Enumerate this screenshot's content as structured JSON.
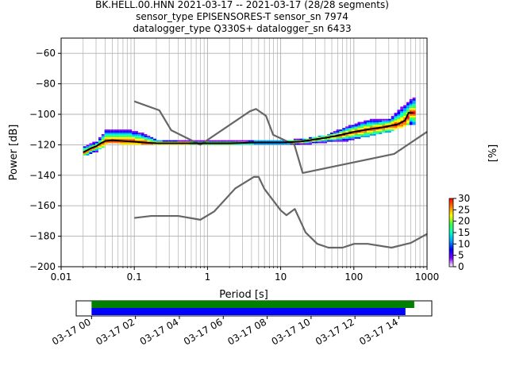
{
  "title_lines": [
    "BK.HELL.00.HNN   2021-03-17 -- 2021-03-17  (28/28 segments)",
    "sensor_type EPISENSORES-T sensor_sn 7974",
    "datalogger_type Q330S+ datalogger_sn 6433"
  ],
  "colorbar": {
    "label": "[%]",
    "ticks": [
      "0",
      "5",
      "10",
      "15",
      "20",
      "25",
      "30"
    ],
    "range": [
      0,
      30
    ],
    "colors": [
      "#ffffff",
      "#8000ff",
      "#0000ff",
      "#00a0ff",
      "#00ffcc",
      "#40ff40",
      "#ffff00",
      "#ff8000",
      "#ff0000"
    ]
  },
  "chart_data": {
    "type": "line",
    "xlabel": "Period [s]",
    "ylabel": "Power [dB]",
    "xscale": "log",
    "xlim": [
      0.01,
      1000
    ],
    "ylim": [
      -200,
      -50
    ],
    "x_ticks": [
      "0.01",
      "0.1",
      "1",
      "10",
      "100",
      "1000"
    ],
    "y_ticks": [
      "−200",
      "−180",
      "−160",
      "−140",
      "−120",
      "−100",
      "−80",
      "−60"
    ],
    "grid": true,
    "series": [
      {
        "role": "high-noise-model",
        "color": "#666666",
        "points": [
          [
            0.1,
            -91.5
          ],
          [
            0.22,
            -97.4
          ],
          [
            0.32,
            -110.5
          ],
          [
            0.8,
            -120.0
          ],
          [
            3.8,
            -98.0
          ],
          [
            4.6,
            -96.5
          ],
          [
            6.3,
            -101.0
          ],
          [
            7.9,
            -113.5
          ],
          [
            15.4,
            -120.0
          ],
          [
            20.0,
            -138.5
          ],
          [
            354.8,
            -126.0
          ],
          [
            1000,
            -111.5
          ]
        ]
      },
      {
        "role": "low-noise-model",
        "color": "#666666",
        "points": [
          [
            0.1,
            -168.0
          ],
          [
            0.17,
            -166.7
          ],
          [
            0.4,
            -166.7
          ],
          [
            0.8,
            -169.2
          ],
          [
            1.24,
            -163.7
          ],
          [
            2.4,
            -148.6
          ],
          [
            4.3,
            -141.1
          ],
          [
            5.0,
            -141.1
          ],
          [
            6.0,
            -149.0
          ],
          [
            10.0,
            -163.0
          ],
          [
            12.0,
            -166.2
          ],
          [
            15.6,
            -162.1
          ],
          [
            21.9,
            -177.5
          ],
          [
            31.6,
            -185.0
          ],
          [
            45.0,
            -187.5
          ],
          [
            70.0,
            -187.5
          ],
          [
            101.0,
            -185.0
          ],
          [
            154.0,
            -185.0
          ],
          [
            328.0,
            -187.5
          ],
          [
            600.0,
            -184.4
          ],
          [
            1000,
            -178.5
          ]
        ]
      },
      {
        "role": "mode",
        "color": "#000000",
        "points": [
          [
            0.02,
            -125.0
          ],
          [
            0.025,
            -122.5
          ],
          [
            0.03,
            -121.0
          ],
          [
            0.035,
            -119.0
          ],
          [
            0.04,
            -117.5
          ],
          [
            0.05,
            -117.0
          ],
          [
            0.07,
            -117.5
          ],
          [
            0.1,
            -118.0
          ],
          [
            0.15,
            -118.7
          ],
          [
            0.2,
            -119.0
          ],
          [
            0.5,
            -119.0
          ],
          [
            1,
            -119.0
          ],
          [
            2,
            -119.0
          ],
          [
            5,
            -118.5
          ],
          [
            10,
            -118.5
          ],
          [
            18,
            -118.0
          ],
          [
            25,
            -117.0
          ],
          [
            40,
            -115.5
          ],
          [
            60,
            -114.0
          ],
          [
            90,
            -112.0
          ],
          [
            150,
            -110.0
          ],
          [
            250,
            -108.5
          ],
          [
            400,
            -106.5
          ],
          [
            500,
            -104.0
          ],
          [
            560,
            -99.0
          ],
          [
            650,
            -99.0
          ]
        ]
      }
    ],
    "pdf_spread_dB": {
      "periods": [
        0.02,
        0.03,
        0.04,
        0.06,
        0.09,
        0.13,
        0.2,
        1,
        10,
        20,
        40,
        80,
        150,
        300,
        500,
        650
      ],
      "low": [
        -127,
        -124,
        -119,
        -119,
        -119.5,
        -120,
        -120,
        -120,
        -120,
        -119.5,
        -118,
        -117,
        -114,
        -111,
        -107,
        -106
      ],
      "high": [
        -121,
        -118,
        -110,
        -110,
        -111,
        -113,
        -117,
        -118,
        -117.5,
        -116.5,
        -114,
        -108,
        -104,
        -103,
        -93,
        -89
      ]
    }
  },
  "timeline": {
    "tick_labels": [
      "03-17 00",
      "03-17 02",
      "03-17 04",
      "03-17 06",
      "03-17 08",
      "03-17 10",
      "03-17 12",
      "03-17 14"
    ],
    "hours_range": [
      -0.7,
      15.5
    ],
    "bars": [
      {
        "color": "#008000",
        "start_h": 0.0,
        "end_h": 14.7
      },
      {
        "color": "#0000ff",
        "start_h": 0.0,
        "end_h": 14.3
      }
    ]
  }
}
